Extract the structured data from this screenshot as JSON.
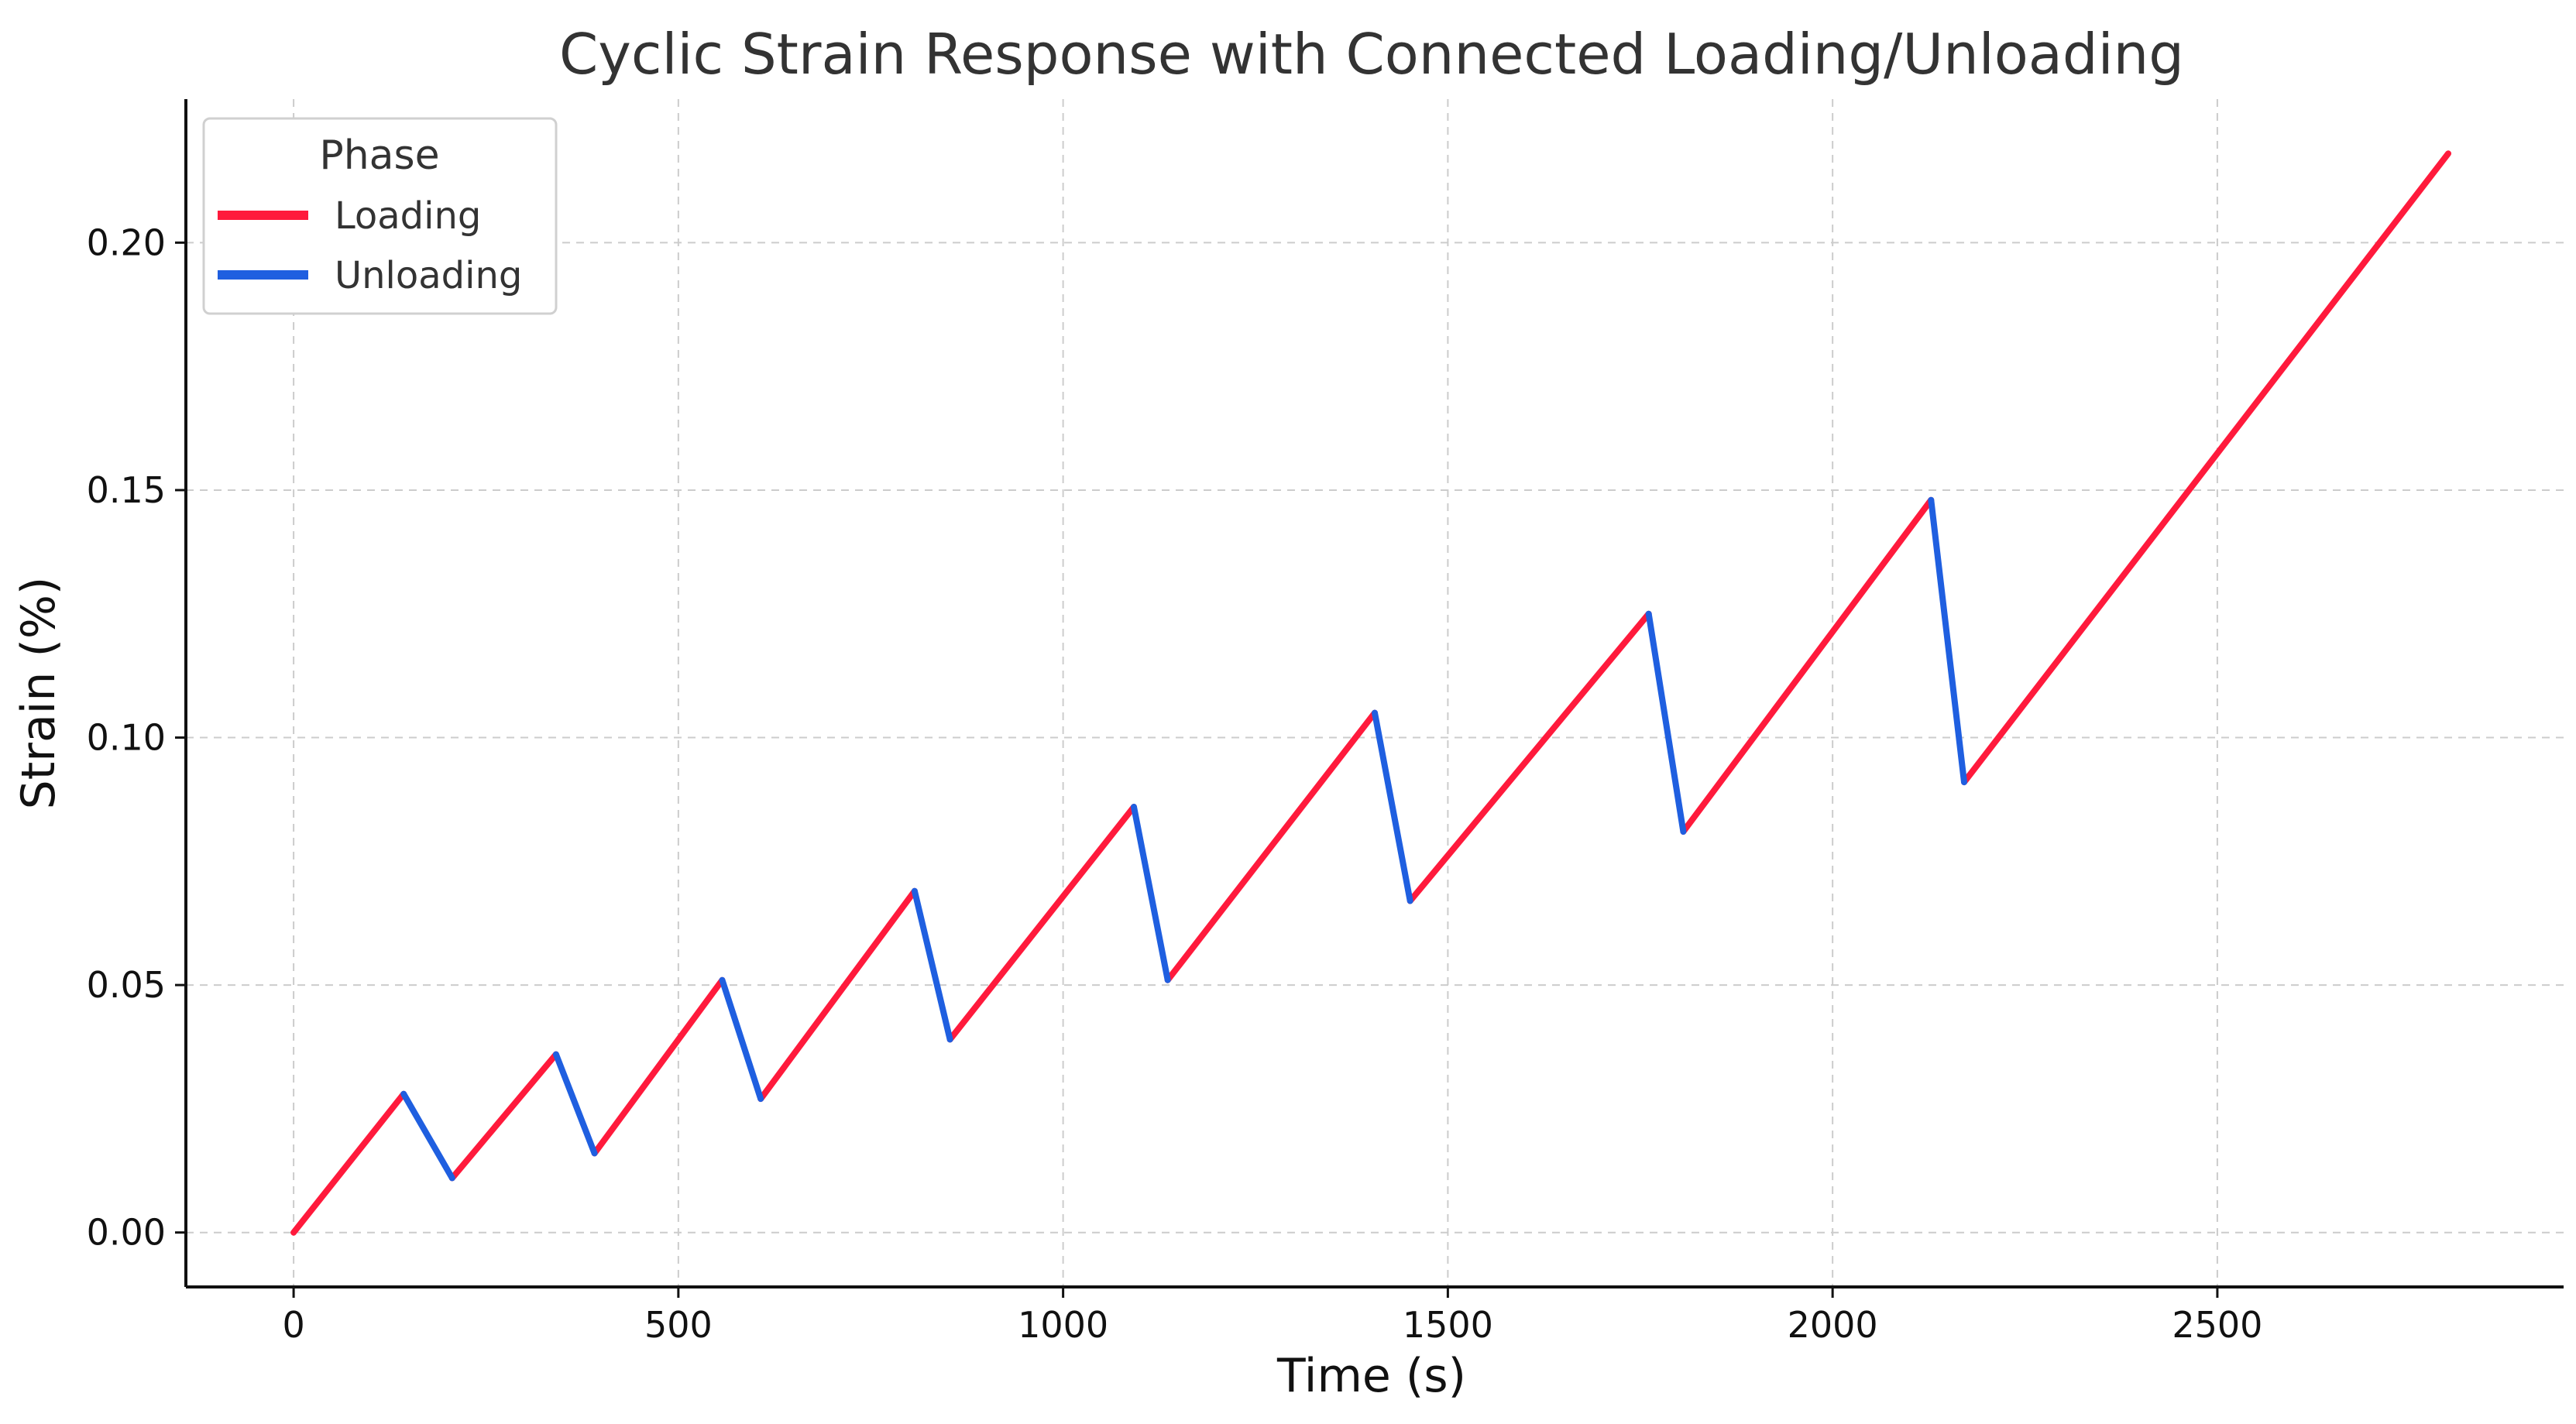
{
  "chart_data": {
    "type": "line",
    "title": "Cyclic Strain Response with Connected Loading/Unloading",
    "xlabel": "Time (s)",
    "ylabel": "Strain (%)",
    "xlim": [
      -140,
      2950
    ],
    "ylim": [
      -0.011,
      0.229
    ],
    "xticks": [
      0,
      500,
      1000,
      1500,
      2000,
      2500
    ],
    "xtick_labels": [
      "0",
      "500",
      "1000",
      "1500",
      "2000",
      "2500"
    ],
    "yticks": [
      0.0,
      0.05,
      0.1,
      0.15,
      0.2
    ],
    "ytick_labels": [
      "0.00",
      "0.05",
      "0.10",
      "0.15",
      "0.20"
    ],
    "grid": true,
    "legend": {
      "title": "Phase",
      "placement": "top-left",
      "entries": [
        {
          "label": "Loading",
          "color": "#ff1a3c"
        },
        {
          "label": "Unloading",
          "color": "#1f5fe0"
        }
      ]
    },
    "series": [
      {
        "name": "Loading",
        "color": "#ff1a3c",
        "segments": [
          [
            [
              0,
              0.0
            ],
            [
              143,
              0.028
            ]
          ],
          [
            [
              206,
              0.011
            ],
            [
              341,
              0.036
            ]
          ],
          [
            [
              391,
              0.016
            ],
            [
              557,
              0.051
            ]
          ],
          [
            [
              607,
              0.027
            ],
            [
              807,
              0.069
            ]
          ],
          [
            [
              853,
              0.039
            ],
            [
              1092,
              0.086
            ]
          ],
          [
            [
              1136,
              0.051
            ],
            [
              1405,
              0.105
            ]
          ],
          [
            [
              1451,
              0.067
            ],
            [
              1761,
              0.125
            ]
          ],
          [
            [
              1806,
              0.081
            ],
            [
              2128,
              0.148
            ]
          ],
          [
            [
              2171,
              0.091
            ],
            [
              2800,
              0.218
            ]
          ]
        ]
      },
      {
        "name": "Unloading",
        "color": "#1f5fe0",
        "segments": [
          [
            [
              143,
              0.028
            ],
            [
              206,
              0.011
            ]
          ],
          [
            [
              341,
              0.036
            ],
            [
              391,
              0.016
            ]
          ],
          [
            [
              557,
              0.051
            ],
            [
              607,
              0.027
            ]
          ],
          [
            [
              807,
              0.069
            ],
            [
              853,
              0.039
            ]
          ],
          [
            [
              1092,
              0.086
            ],
            [
              1136,
              0.051
            ]
          ],
          [
            [
              1405,
              0.105
            ],
            [
              1451,
              0.067
            ]
          ],
          [
            [
              1761,
              0.125
            ],
            [
              1806,
              0.081
            ]
          ],
          [
            [
              2128,
              0.148
            ],
            [
              2171,
              0.091
            ]
          ]
        ]
      }
    ]
  }
}
